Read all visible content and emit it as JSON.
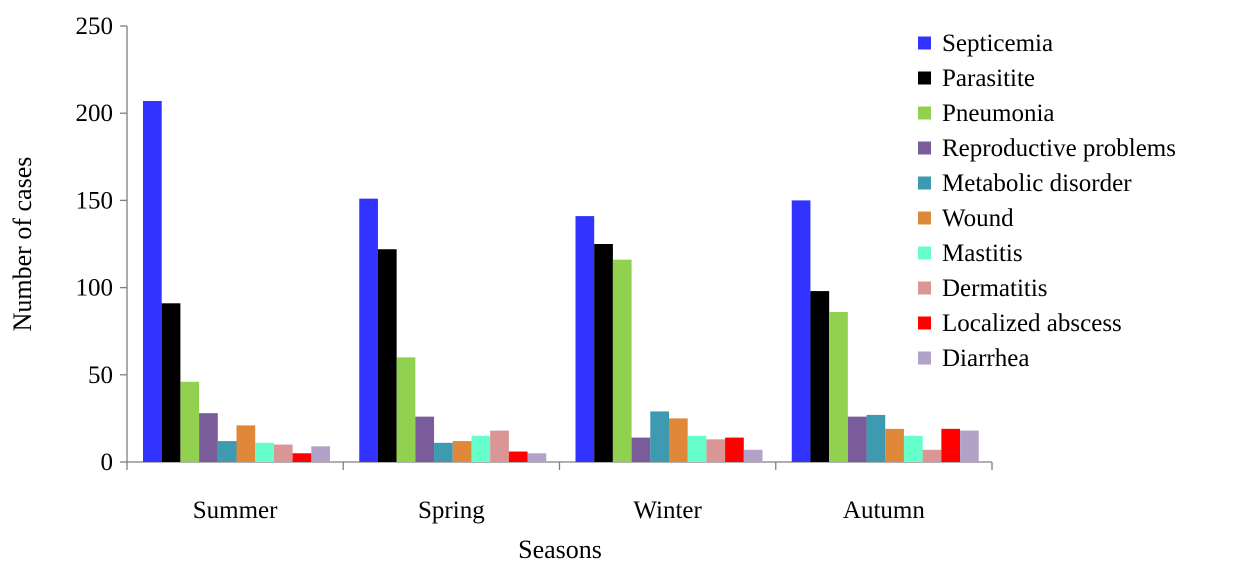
{
  "chart_data": {
    "type": "bar",
    "title": "",
    "xlabel": "Seasons",
    "ylabel": "Number of cases",
    "ylim": [
      0,
      250
    ],
    "yticks": [
      0,
      50,
      100,
      150,
      200,
      250
    ],
    "grid": false,
    "legend_position": "right",
    "categories": [
      "Summer",
      "Spring",
      "Winter",
      "Autumn"
    ],
    "series": [
      {
        "name": "Septicemia",
        "color": "#3333FF",
        "values": [
          207,
          151,
          141,
          150
        ]
      },
      {
        "name": "Parasitite",
        "color": "#000000",
        "values": [
          91,
          122,
          125,
          98
        ]
      },
      {
        "name": "Pneumonia",
        "color": "#92D050",
        "values": [
          46,
          60,
          116,
          86
        ]
      },
      {
        "name": "Reproductive problems",
        "color": "#7A5C9A",
        "values": [
          28,
          26,
          14,
          26
        ]
      },
      {
        "name": "Metabolic disorder",
        "color": "#3D9AB0",
        "values": [
          12,
          11,
          29,
          27
        ]
      },
      {
        "name": "Wound",
        "color": "#E0883A",
        "values": [
          21,
          12,
          25,
          19
        ]
      },
      {
        "name": "Mastitis",
        "color": "#66FFCC",
        "values": [
          11,
          15,
          15,
          15
        ]
      },
      {
        "name": "Dermatitis",
        "color": "#D99694",
        "values": [
          10,
          18,
          13,
          7
        ]
      },
      {
        "name": "Localized abscess",
        "color": "#FF0000",
        "values": [
          5,
          6,
          14,
          19
        ]
      },
      {
        "name": "Diarrhea",
        "color": "#B3A2C7",
        "values": [
          9,
          5,
          7,
          18
        ]
      }
    ]
  }
}
